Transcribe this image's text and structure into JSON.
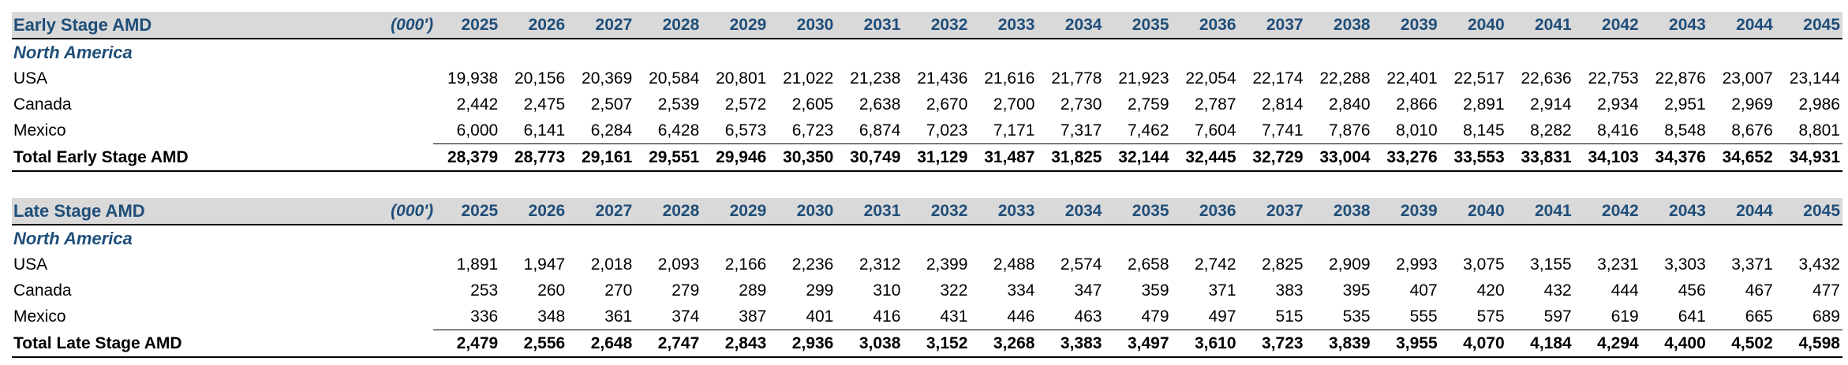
{
  "years": [
    "2025",
    "2026",
    "2027",
    "2028",
    "2029",
    "2030",
    "2031",
    "2032",
    "2033",
    "2034",
    "2035",
    "2036",
    "2037",
    "2038",
    "2039",
    "2040",
    "2041",
    "2042",
    "2043",
    "2044",
    "2045"
  ],
  "sections": [
    {
      "title": "Early Stage AMD",
      "unit": "(000')",
      "region": "North America",
      "rows": [
        {
          "label": "USA",
          "values": [
            "19,938",
            "20,156",
            "20,369",
            "20,584",
            "20,801",
            "21,022",
            "21,238",
            "21,436",
            "21,616",
            "21,778",
            "21,923",
            "22,054",
            "22,174",
            "22,288",
            "22,401",
            "22,517",
            "22,636",
            "22,753",
            "22,876",
            "23,007",
            "23,144"
          ]
        },
        {
          "label": "Canada",
          "values": [
            "2,442",
            "2,475",
            "2,507",
            "2,539",
            "2,572",
            "2,605",
            "2,638",
            "2,670",
            "2,700",
            "2,730",
            "2,759",
            "2,787",
            "2,814",
            "2,840",
            "2,866",
            "2,891",
            "2,914",
            "2,934",
            "2,951",
            "2,969",
            "2,986"
          ]
        },
        {
          "label": "Mexico",
          "values": [
            "6,000",
            "6,141",
            "6,284",
            "6,428",
            "6,573",
            "6,723",
            "6,874",
            "7,023",
            "7,171",
            "7,317",
            "7,462",
            "7,604",
            "7,741",
            "7,876",
            "8,010",
            "8,145",
            "8,282",
            "8,416",
            "8,548",
            "8,676",
            "8,801"
          ]
        }
      ],
      "total": {
        "label": "Total Early Stage AMD",
        "values": [
          "28,379",
          "28,773",
          "29,161",
          "29,551",
          "29,946",
          "30,350",
          "30,749",
          "31,129",
          "31,487",
          "31,825",
          "32,144",
          "32,445",
          "32,729",
          "33,004",
          "33,276",
          "33,553",
          "33,831",
          "34,103",
          "34,376",
          "34,652",
          "34,931"
        ]
      }
    },
    {
      "title": "Late Stage AMD",
      "unit": "(000')",
      "region": "North America",
      "rows": [
        {
          "label": "USA",
          "values": [
            "1,891",
            "1,947",
            "2,018",
            "2,093",
            "2,166",
            "2,236",
            "2,312",
            "2,399",
            "2,488",
            "2,574",
            "2,658",
            "2,742",
            "2,825",
            "2,909",
            "2,993",
            "3,075",
            "3,155",
            "3,231",
            "3,303",
            "3,371",
            "3,432"
          ]
        },
        {
          "label": "Canada",
          "values": [
            "253",
            "260",
            "270",
            "279",
            "289",
            "299",
            "310",
            "322",
            "334",
            "347",
            "359",
            "371",
            "383",
            "395",
            "407",
            "420",
            "432",
            "444",
            "456",
            "467",
            "477"
          ]
        },
        {
          "label": "Mexico",
          "values": [
            "336",
            "348",
            "361",
            "374",
            "387",
            "401",
            "416",
            "431",
            "446",
            "463",
            "479",
            "497",
            "515",
            "535",
            "555",
            "575",
            "597",
            "619",
            "641",
            "665",
            "689"
          ]
        }
      ],
      "total": {
        "label": "Total Late Stage AMD",
        "values": [
          "2,479",
          "2,556",
          "2,648",
          "2,747",
          "2,843",
          "2,936",
          "3,038",
          "3,152",
          "3,268",
          "3,383",
          "3,497",
          "3,610",
          "3,723",
          "3,839",
          "3,955",
          "4,070",
          "4,184",
          "4,294",
          "4,400",
          "4,502",
          "4,598"
        ]
      }
    }
  ]
}
